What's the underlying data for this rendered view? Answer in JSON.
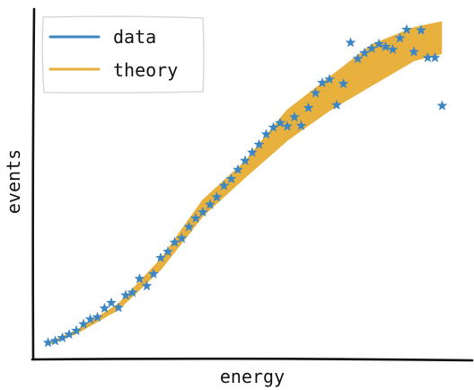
{
  "chart_data": {
    "type": "scatter",
    "title": "",
    "xlabel": "energy",
    "ylabel": "events",
    "xlim": [
      0,
      10
    ],
    "ylim": [
      0,
      10
    ],
    "grid": false,
    "legend_position": "top-left",
    "series": [
      {
        "name": "data",
        "kind": "scatter",
        "marker": "star",
        "color": "#3d86c4",
        "x": [
          0.33,
          0.5,
          0.67,
          0.83,
          1.0,
          1.17,
          1.33,
          1.5,
          1.67,
          1.83,
          2.0,
          2.17,
          2.33,
          2.5,
          2.67,
          2.83,
          3.0,
          3.17,
          3.33,
          3.5,
          3.67,
          3.83,
          4.0,
          4.17,
          4.33,
          4.5,
          4.67,
          4.83,
          5.0,
          5.17,
          5.33,
          5.5,
          5.67,
          5.83,
          6.0,
          6.17,
          6.33,
          6.5,
          6.67,
          6.83,
          7.0,
          7.17,
          7.33,
          7.5,
          7.67,
          7.83,
          8.0,
          8.17,
          8.33,
          8.5,
          8.67,
          8.83,
          9.0,
          9.17,
          9.33,
          9.5,
          9.67
        ],
        "y": [
          0.28,
          0.33,
          0.42,
          0.52,
          0.63,
          0.82,
          0.96,
          1.02,
          1.28,
          1.44,
          1.3,
          1.66,
          1.74,
          2.14,
          1.93,
          2.28,
          2.75,
          2.93,
          3.2,
          3.32,
          3.65,
          3.9,
          4.08,
          4.3,
          4.52,
          4.85,
          5.05,
          5.32,
          5.58,
          5.82,
          6.05,
          6.35,
          6.55,
          6.68,
          6.58,
          6.85,
          6.6,
          7.12,
          7.55,
          7.85,
          7.95,
          7.2,
          7.82,
          9.02,
          8.55,
          8.72,
          8.85,
          8.98,
          8.9,
          8.82,
          9.15,
          9.4,
          8.75,
          9.38,
          8.58,
          8.58,
          7.18
        ]
      },
      {
        "name": "theory",
        "kind": "band",
        "color": "#e8b03c",
        "x": [
          0.33,
          1.0,
          2.0,
          3.0,
          4.0,
          5.0,
          6.0,
          7.0,
          8.0,
          9.0,
          9.65
        ],
        "y_lower": [
          0.22,
          0.55,
          1.25,
          2.42,
          3.98,
          5.1,
          6.18,
          7.05,
          7.78,
          8.5,
          8.7
        ],
        "y_upper": [
          0.27,
          0.63,
          1.4,
          2.7,
          4.43,
          5.55,
          7.05,
          8.0,
          8.95,
          9.45,
          9.62
        ]
      }
    ]
  }
}
